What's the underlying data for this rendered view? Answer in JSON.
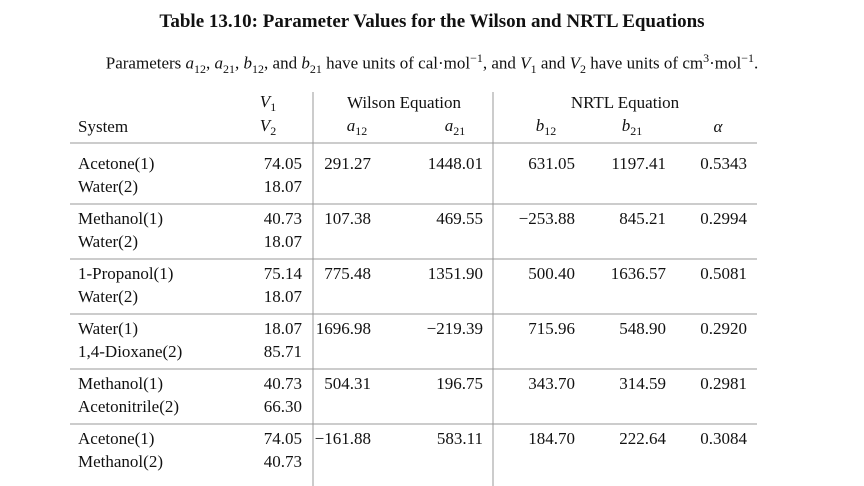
{
  "title": "Table 13.10: Parameter Values for the Wilson and NRTL Equations",
  "caption": [
    "Parameters ",
    "a",
    "12",
    ", ",
    "a",
    "21",
    ", ",
    "b",
    "12",
    ", and ",
    "b",
    "21",
    " have units of cal·mol",
    "−1",
    ", and ",
    "V",
    "1",
    " and ",
    "V",
    "2",
    " have units of cm",
    "3",
    "·mol",
    "−1",
    "."
  ],
  "table": {
    "header": {
      "system": "System",
      "v1": {
        "sym": "V",
        "sub": "1"
      },
      "v2": {
        "sym": "V",
        "sub": "2"
      },
      "wilson": "Wilson Equation",
      "a12": {
        "sym": "a",
        "sub": "12"
      },
      "a21": {
        "sym": "a",
        "sub": "21"
      },
      "nrtl": "NRTL Equation",
      "b12": {
        "sym": "b",
        "sub": "12"
      },
      "b21": {
        "sym": "b",
        "sub": "21"
      },
      "alpha": "α"
    },
    "rows": [
      {
        "systems": [
          "Acetone(1)",
          "Water(2)"
        ],
        "v": [
          "74.05",
          "18.07"
        ],
        "a12": "291.27",
        "a21": "1448.01",
        "b12": "631.05",
        "b21": "1197.41",
        "alpha": "0.5343"
      },
      {
        "systems": [
          "Methanol(1)",
          "Water(2)"
        ],
        "v": [
          "40.73",
          "18.07"
        ],
        "a12": "107.38",
        "a21": "469.55",
        "b12": "−253.88",
        "b21": "845.21",
        "alpha": "0.2994"
      },
      {
        "systems": [
          "1-Propanol(1)",
          "Water(2)"
        ],
        "v": [
          "75.14",
          "18.07"
        ],
        "a12": "775.48",
        "a21": "1351.90",
        "b12": "500.40",
        "b21": "1636.57",
        "alpha": "0.5081"
      },
      {
        "systems": [
          "Water(1)",
          "1,4-Dioxane(2)"
        ],
        "v": [
          "18.07",
          "85.71"
        ],
        "a12": "1696.98",
        "a21": "−219.39",
        "b12": "715.96",
        "b21": "548.90",
        "alpha": "0.2920"
      },
      {
        "systems": [
          "Methanol(1)",
          "Acetonitrile(2)"
        ],
        "v": [
          "40.73",
          "66.30"
        ],
        "a12": "504.31",
        "a21": "196.75",
        "b12": "343.70",
        "b21": "314.59",
        "alpha": "0.2981"
      },
      {
        "systems": [
          "Acetone(1)",
          "Methanol(2)"
        ],
        "v": [
          "74.05",
          "40.73"
        ],
        "a12": "−161.88",
        "a21": "583.11",
        "b12": "184.70",
        "b21": "222.64",
        "alpha": "0.3084"
      }
    ]
  }
}
